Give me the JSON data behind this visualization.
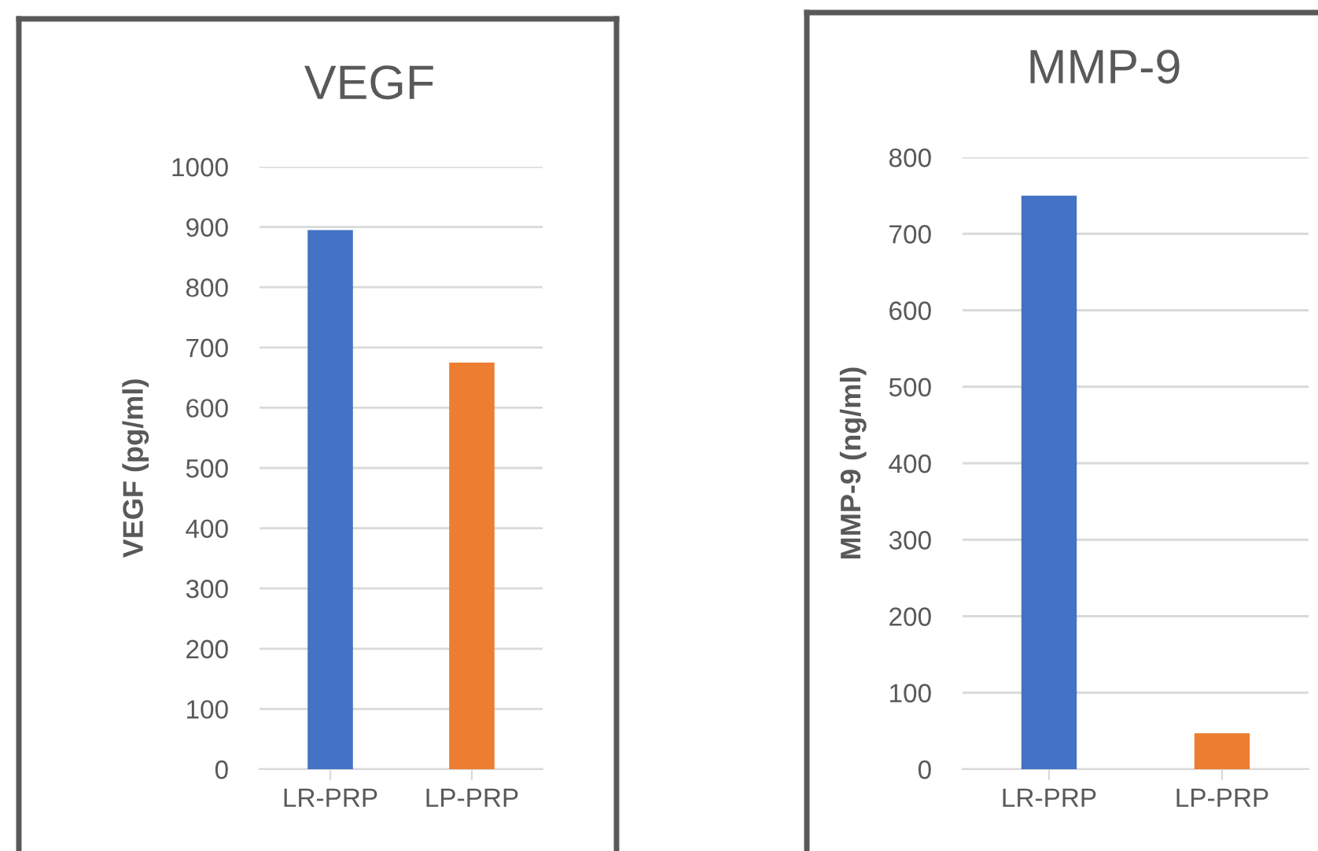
{
  "chart_data": [
    {
      "type": "bar",
      "title": "VEGF",
      "ylabel": "VEGF (pg/ml)",
      "categories": [
        "LR-PRP",
        "LP-PRP"
      ],
      "values": [
        895,
        675
      ],
      "colors": [
        "#4472c4",
        "#ed7d31"
      ],
      "ylim": [
        0,
        1000
      ],
      "yticks": [
        0,
        100,
        200,
        300,
        400,
        500,
        600,
        700,
        800,
        900,
        1000
      ],
      "grid": "y",
      "legend": false
    },
    {
      "type": "bar",
      "title": "MMP-9",
      "ylabel": "MMP-9 (ng/ml)",
      "categories": [
        "LR-PRP",
        "LP-PRP"
      ],
      "values": [
        750,
        47
      ],
      "colors": [
        "#4472c4",
        "#ed7d31"
      ],
      "ylim": [
        0,
        800
      ],
      "yticks": [
        0,
        100,
        200,
        300,
        400,
        500,
        600,
        700,
        800
      ],
      "grid": "y",
      "legend": false
    }
  ]
}
